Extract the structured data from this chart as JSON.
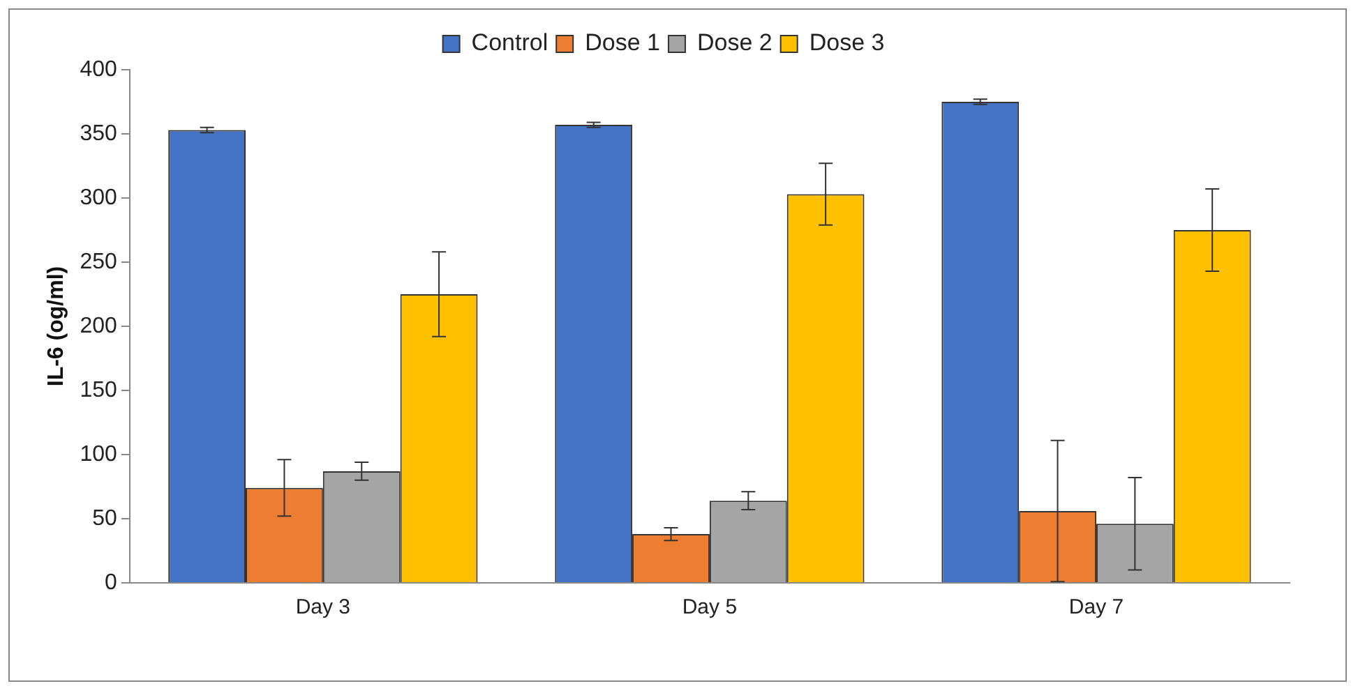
{
  "chart_data": {
    "type": "bar",
    "ylabel": "IL-6 (og/ml)",
    "categories": [
      "Day 3",
      "Day 5",
      "Day 7"
    ],
    "series": [
      {
        "name": "Control",
        "color": "#4472c4",
        "values": [
          353,
          357,
          375
        ],
        "errors": [
          2,
          2,
          2
        ]
      },
      {
        "name": "Dose 1",
        "color": "#ed7d31",
        "values": [
          74,
          38,
          56
        ],
        "errors": [
          22,
          5,
          55
        ]
      },
      {
        "name": "Dose 2",
        "color": "#a5a5a5",
        "values": [
          87,
          64,
          46
        ],
        "errors": [
          7,
          7,
          36
        ]
      },
      {
        "name": "Dose 3",
        "color": "#ffc000",
        "values": [
          225,
          303,
          275
        ],
        "errors": [
          33,
          24,
          32
        ]
      }
    ],
    "ylim": [
      0,
      400
    ],
    "yticks": [
      0,
      50,
      100,
      150,
      200,
      250,
      300,
      350,
      400
    ],
    "grid": false,
    "legend": "top"
  }
}
